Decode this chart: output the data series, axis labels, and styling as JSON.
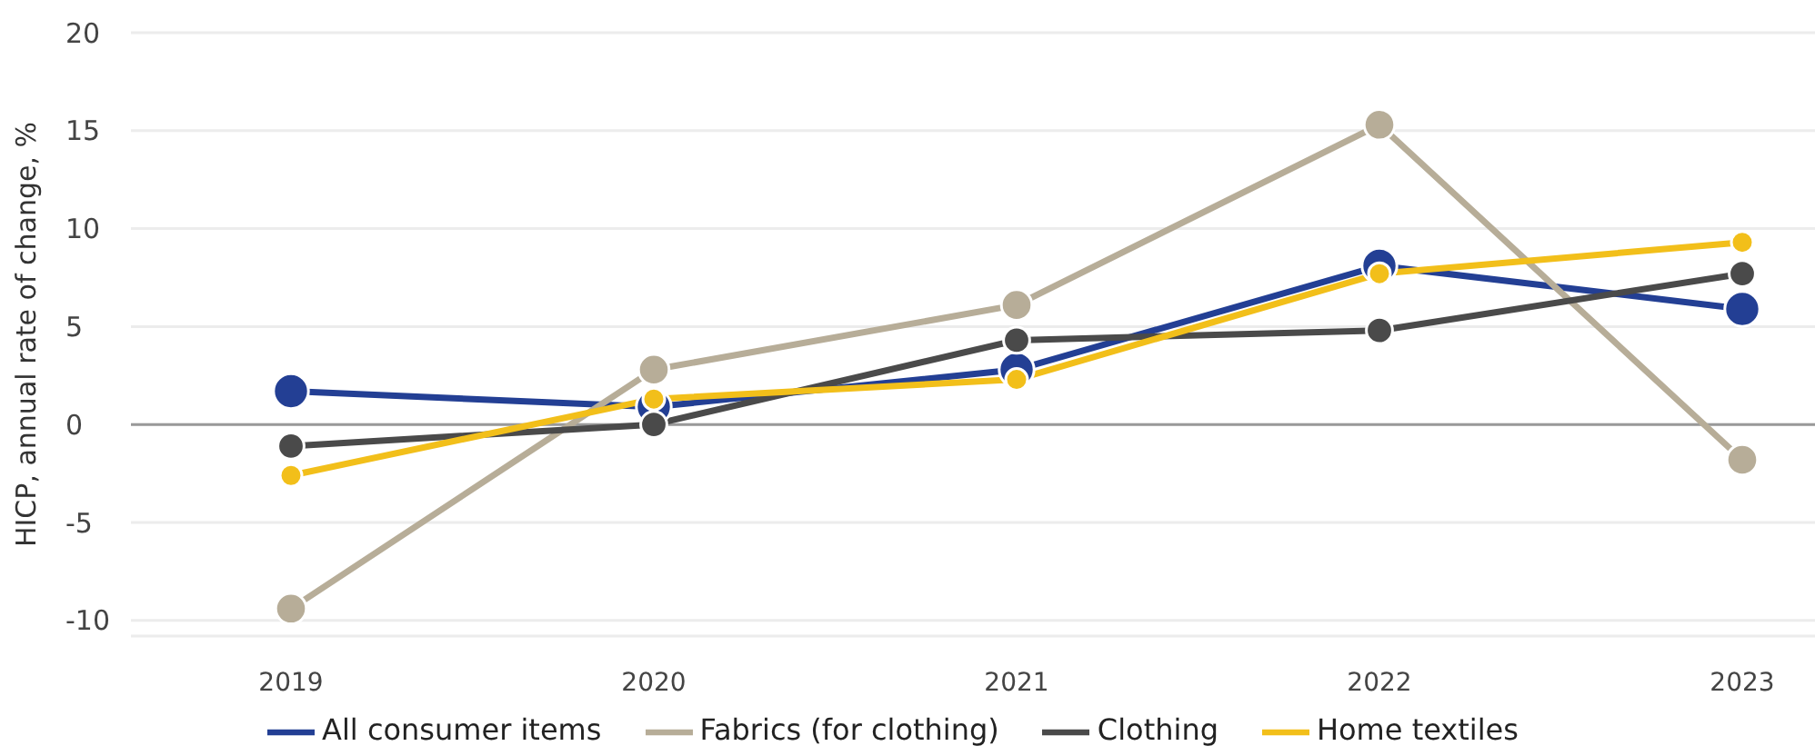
{
  "chart_data": {
    "type": "line",
    "ylabel": "HICP, annual rate of change, %",
    "categories": [
      "2019",
      "2020",
      "2021",
      "2022",
      "2023"
    ],
    "series": [
      {
        "name": "All consumer items",
        "color": "#233f94",
        "values": [
          1.7,
          0.9,
          2.8,
          8.1,
          5.9
        ]
      },
      {
        "name": "Fabrics (for clothing)",
        "color": "#b7ad98",
        "values": [
          -9.4,
          2.8,
          6.1,
          15.3,
          -1.8
        ]
      },
      {
        "name": "Clothing",
        "color": "#4a4a4a",
        "values": [
          -1.1,
          0,
          4.3,
          4.8,
          7.7
        ]
      },
      {
        "name": "Home textiles",
        "color": "#f2bf1a",
        "values": [
          -2.6,
          1.3,
          2.3,
          7.7,
          9.3
        ]
      }
    ],
    "ylim": [
      -10.8,
      20
    ],
    "yticks": [
      -10,
      -5,
      0,
      5,
      10,
      15,
      20
    ],
    "grid": "y",
    "legend": "bottom",
    "marker": "circle",
    "line_style": "solid",
    "ref_lines": [
      {
        "axis": "y",
        "value": 0,
        "color": "#999999"
      }
    ]
  }
}
